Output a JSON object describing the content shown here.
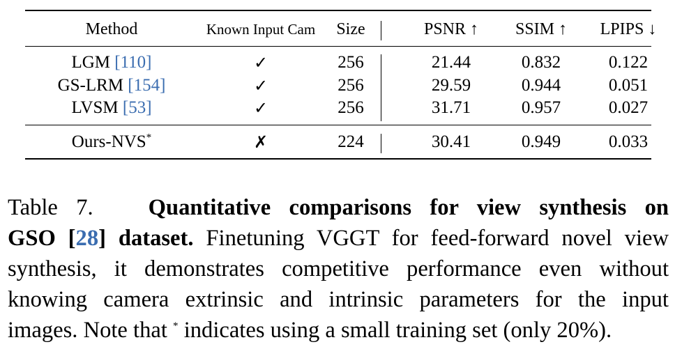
{
  "table": {
    "headers": {
      "method": "Method",
      "known_input_cam": "Known Input Cam",
      "size": "Size",
      "psnr": "PSNR ↑",
      "ssim": "SSIM ↑",
      "lpips": "LPIPS ↓"
    },
    "rows": [
      {
        "method": "LGM",
        "ref": "[110]",
        "cam": "✓",
        "size": "256",
        "psnr": "21.44",
        "ssim": "0.832",
        "lpips": "0.122"
      },
      {
        "method": "GS-LRM",
        "ref": "[154]",
        "cam": "✓",
        "size": "256",
        "psnr": "29.59",
        "ssim": "0.944",
        "lpips": "0.051"
      },
      {
        "method": "LVSM",
        "ref": "[53]",
        "cam": "✓",
        "size": "256",
        "psnr": "31.71",
        "ssim": "0.957",
        "lpips": "0.027"
      }
    ],
    "ours": {
      "method": "Ours-NVS",
      "star": "*",
      "cam": "✗",
      "size": "224",
      "psnr": "30.41",
      "ssim": "0.949",
      "lpips": "0.033"
    }
  },
  "caption": {
    "label": "Table 7.",
    "title_part1": "Quantitative comparisons for view synthesis on",
    "title_part2a": "GSO [",
    "title_ref": "28",
    "title_part2b": "] dataset.",
    "line2_rest": "Finetuning VGGT for feed-forward novel view",
    "line3": "synthesis, it demonstrates competitive performance even without",
    "line4": "knowing camera extrinsic and intrinsic parameters for the input",
    "line5_a": "images. Note that",
    "line5_star": "*",
    "line5_b": "indicates using a small training set (only 20%)."
  },
  "colors": {
    "reference_link": "#3b6db0",
    "text": "#000000"
  }
}
